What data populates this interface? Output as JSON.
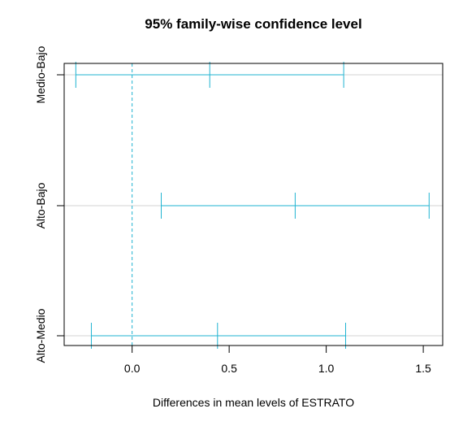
{
  "chart_data": {
    "type": "errorbar",
    "title": "95% family-wise confidence level",
    "xlabel": "Differences in mean levels of ESTRATO",
    "xlim": [
      -0.35,
      1.6
    ],
    "x_ticks": [
      "0.0",
      "0.5",
      "1.0",
      "1.5"
    ],
    "x_tick_values": [
      0.0,
      0.5,
      1.0,
      1.5
    ],
    "reference_line": 0.0,
    "color": "#1fb3d1",
    "grid_color": "#d3d3d3",
    "comparisons": [
      {
        "label": "Medio-Bajo",
        "lwr": -0.29,
        "diff": 0.4,
        "upr": 1.09
      },
      {
        "label": "Alto-Bajo",
        "lwr": 0.15,
        "diff": 0.84,
        "upr": 1.53
      },
      {
        "label": "Alto-Medio",
        "lwr": -0.21,
        "diff": 0.44,
        "upr": 1.1
      }
    ]
  }
}
